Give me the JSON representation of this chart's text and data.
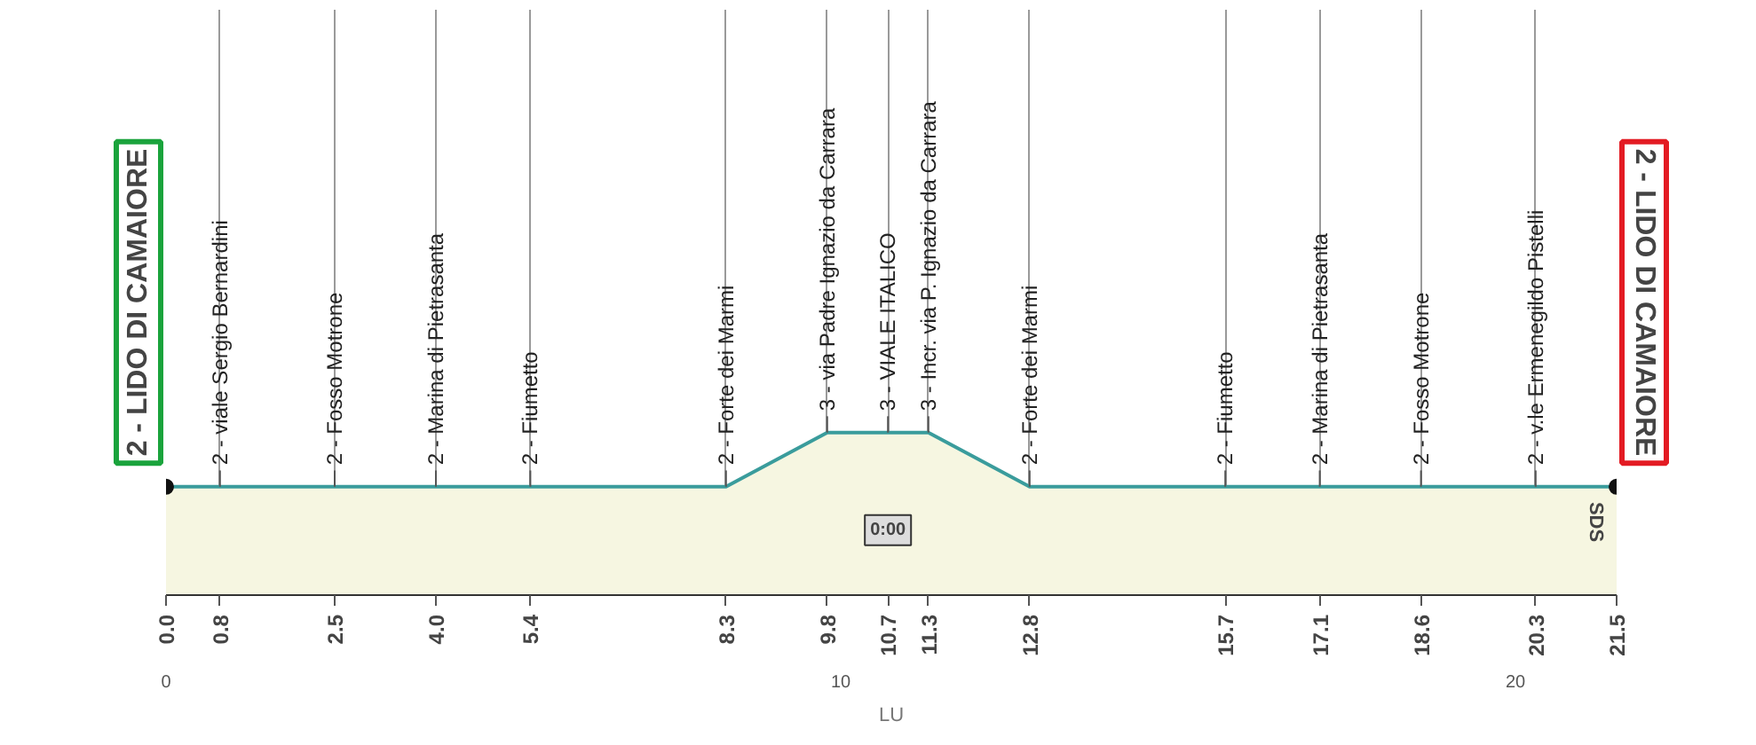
{
  "chart_data": {
    "type": "area",
    "x": [
      0,
      0.8,
      2.5,
      4.0,
      5.4,
      8.3,
      9.8,
      10.7,
      11.3,
      12.8,
      15.7,
      17.1,
      18.6,
      20.3,
      21.5
    ],
    "series": [
      {
        "color": "#f6f6e1",
        "values": [
          2,
          2,
          2,
          2,
          2,
          2,
          3,
          3,
          3,
          2,
          2,
          2,
          2,
          2,
          2
        ],
        "value_labels": [
          null,
          "2 - viale Sergio Bernardini",
          "2 - Fosso Motrone",
          "2 - Marina di Pietrasanta",
          "2 - Fiumetto",
          "2 - Forte dei Marmi",
          "3 - via Padre Ignazio da Carrara",
          "3 - VIALE ITALICO",
          "3 - Incr. via P. Ignazio da Carrara",
          "2 - Forte dei Marmi",
          "2 - Fiumetto",
          "2 - Marina di Pietrasanta",
          "2 - Fosso Motrone",
          "2 - v.le Ermenegildo Pistelli",
          null
        ]
      }
    ],
    "xlim": [
      0,
      21.5
    ],
    "xticks": [
      {
        "value": 0,
        "label": "0.0"
      },
      0.8,
      2.5,
      {
        "value": 4,
        "label": "4.0"
      },
      5.4,
      8.3,
      9.8,
      10.7,
      11.3,
      12.8,
      15.7,
      17.1,
      18.6,
      20.3,
      21.5
    ],
    "x2lim": [
      0,
      21.5
    ],
    "x2ticks": [
      0,
      10,
      20
    ],
    "annotations": [
      "2 - LIDO DI CAMAIORE",
      "2 - LIDO DI CAMAIORE",
      {
        "text": "0:00",
        "x": 10.7
      },
      "SDS",
      "LU"
    ],
    "grid": "x"
  }
}
